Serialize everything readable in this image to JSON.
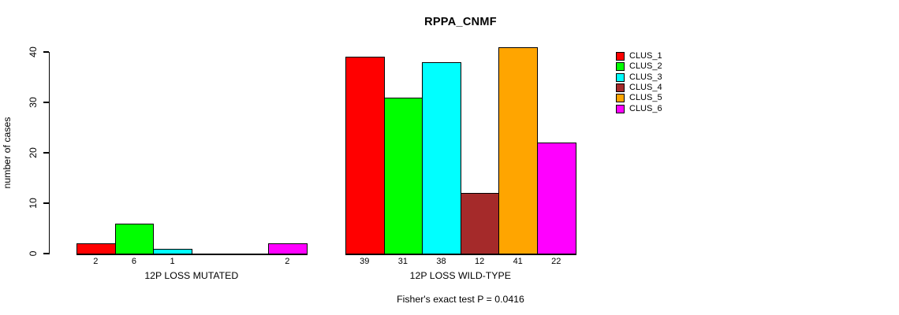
{
  "chart_data": {
    "type": "bar",
    "title": "RPPA_CNMF",
    "ylabel": "number of cases",
    "xlabel": "",
    "ylim": [
      0,
      40
    ],
    "yticks": [
      0,
      10,
      20,
      30,
      40
    ],
    "grid": false,
    "legend_position": "top-right",
    "annotation": "Fisher's exact test P = 0.0416",
    "categories": [
      "12P LOSS MUTATED",
      "12P LOSS WILD-TYPE"
    ],
    "series": [
      {
        "name": "CLUS_1",
        "color": "#FF0000",
        "values": [
          2,
          39
        ]
      },
      {
        "name": "CLUS_2",
        "color": "#00FF00",
        "values": [
          6,
          31
        ]
      },
      {
        "name": "CLUS_3",
        "color": "#00FFFF",
        "values": [
          1,
          38
        ]
      },
      {
        "name": "CLUS_4",
        "color": "#A52A2A",
        "values": [
          0,
          12
        ]
      },
      {
        "name": "CLUS_5",
        "color": "#FFA500",
        "values": [
          0,
          41
        ]
      },
      {
        "name": "CLUS_6",
        "color": "#FF00FF",
        "values": [
          2,
          22
        ]
      }
    ],
    "bar_value_labels_shown": true,
    "zero_value_labels_hidden": true
  }
}
